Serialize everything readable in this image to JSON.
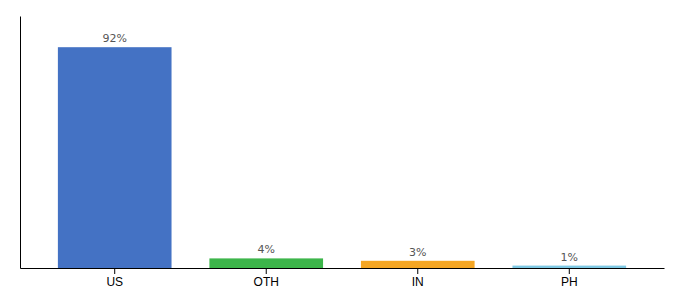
{
  "chart_data": {
    "type": "bar",
    "categories": [
      "US",
      "OTH",
      "IN",
      "PH"
    ],
    "values": [
      92,
      4,
      3,
      1
    ],
    "colors": [
      "#4472c4",
      "#3cb54a",
      "#f5a623",
      "#7ec8e3"
    ],
    "data_labels": true,
    "value_labels": [
      "92%",
      "4%",
      "3%",
      "1%"
    ],
    "ylim": [
      0,
      105
    ],
    "tick_labels": "x"
  }
}
